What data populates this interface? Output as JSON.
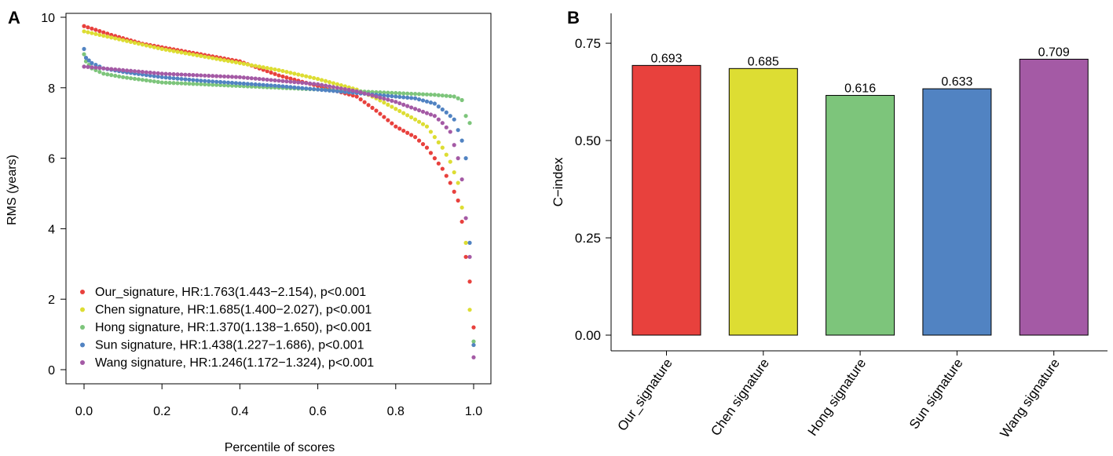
{
  "panels": {
    "a": {
      "letter": "A"
    },
    "b": {
      "letter": "B"
    }
  },
  "colors": {
    "red": "#E8413D",
    "yellow": "#DDDD33",
    "green": "#7DC57B",
    "blue": "#5183C2",
    "purple": "#A45AA5"
  },
  "chart_data": [
    {
      "type": "scatter",
      "panel": "A",
      "xlabel": "Percentile of scores",
      "ylabel": "RMS (years)",
      "xlim": [
        0.0,
        1.0
      ],
      "ylim": [
        0,
        10
      ],
      "x_ticks": [
        "0.0",
        "0.2",
        "0.4",
        "0.6",
        "0.8",
        "1.0"
      ],
      "y_ticks": [
        "0",
        "2",
        "4",
        "6",
        "8",
        "10"
      ],
      "legend_position": "bottom-left",
      "series": [
        {
          "name": "Our_signature",
          "legend": "Our_signature, HR:1.763(1.443−2.154), p<0.001",
          "color": "#E8413D",
          "x": [
            0,
            0.07,
            0.15,
            0.3,
            0.4,
            0.5,
            0.6,
            0.7,
            0.75,
            0.8,
            0.85,
            0.88,
            0.9,
            0.92,
            0.94,
            0.96,
            0.97,
            0.98,
            0.99,
            1.0
          ],
          "y": [
            9.75,
            9.5,
            9.25,
            8.95,
            8.75,
            8.35,
            8.05,
            7.75,
            7.35,
            6.9,
            6.6,
            6.3,
            6.0,
            5.7,
            5.3,
            4.8,
            4.2,
            3.2,
            2.5,
            1.2
          ]
        },
        {
          "name": "Chen signature",
          "legend": "Chen signature, HR:1.685(1.400−2.027), p<0.001",
          "color": "#DDDD33",
          "x": [
            0,
            0.1,
            0.2,
            0.3,
            0.4,
            0.5,
            0.6,
            0.7,
            0.75,
            0.8,
            0.85,
            0.88,
            0.9,
            0.92,
            0.94,
            0.96,
            0.97,
            0.98,
            0.99,
            1.0
          ],
          "y": [
            9.6,
            9.35,
            9.1,
            8.9,
            8.7,
            8.5,
            8.25,
            7.95,
            7.7,
            7.4,
            7.1,
            6.9,
            6.6,
            6.3,
            5.9,
            5.3,
            4.6,
            3.6,
            1.7,
            0.7
          ]
        },
        {
          "name": "Hong signature",
          "legend": "Hong signature, HR:1.370(1.138−1.650), p<0.001",
          "color": "#7DC57B",
          "x": [
            0,
            0.005,
            0.02,
            0.05,
            0.1,
            0.2,
            0.3,
            0.5,
            0.7,
            0.8,
            0.9,
            0.95,
            0.97,
            0.98,
            0.99,
            1.0
          ],
          "y": [
            8.95,
            8.75,
            8.55,
            8.4,
            8.3,
            8.15,
            8.1,
            8.0,
            7.9,
            7.85,
            7.8,
            7.75,
            7.65,
            7.2,
            7.0,
            0.8
          ]
        },
        {
          "name": "Sun signature",
          "legend": "Sun signature, HR:1.438(1.227−1.686), p<0.001",
          "color": "#5183C2",
          "x": [
            0,
            0.005,
            0.02,
            0.05,
            0.1,
            0.2,
            0.3,
            0.5,
            0.7,
            0.8,
            0.85,
            0.9,
            0.93,
            0.95,
            0.97,
            0.98,
            0.99,
            1.0
          ],
          "y": [
            9.1,
            8.85,
            8.7,
            8.55,
            8.45,
            8.3,
            8.2,
            8.05,
            7.85,
            7.75,
            7.7,
            7.55,
            7.3,
            7.1,
            6.5,
            6.0,
            3.6,
            0.7
          ]
        },
        {
          "name": "Wang signature",
          "legend": "Wang signature, HR:1.246(1.172−1.324), p<0.001",
          "color": "#A45AA5",
          "x": [
            0,
            0.1,
            0.2,
            0.3,
            0.4,
            0.5,
            0.6,
            0.7,
            0.8,
            0.85,
            0.9,
            0.92,
            0.94,
            0.96,
            0.97,
            0.98,
            0.99,
            1.0
          ],
          "y": [
            8.6,
            8.5,
            8.4,
            8.35,
            8.3,
            8.2,
            8.1,
            7.9,
            7.6,
            7.4,
            7.2,
            7.0,
            6.75,
            6.0,
            5.4,
            4.3,
            3.2,
            0.35
          ]
        }
      ]
    },
    {
      "type": "bar",
      "panel": "B",
      "ylabel": "C−index",
      "xlabel": "",
      "ylim": [
        0,
        0.85
      ],
      "y_ticks": [
        "0.00",
        "0.25",
        "0.50",
        "0.75"
      ],
      "categories": [
        "Our_signature",
        "Chen signature",
        "Hong signature",
        "Sun signature",
        "Wang signature"
      ],
      "values": [
        0.693,
        0.685,
        0.616,
        0.633,
        0.709
      ],
      "value_labels": [
        "0.693",
        "0.685",
        "0.616",
        "0.633",
        "0.709"
      ],
      "colors": [
        "#E8413D",
        "#DDDD33",
        "#7DC57B",
        "#5183C2",
        "#A45AA5"
      ]
    }
  ]
}
